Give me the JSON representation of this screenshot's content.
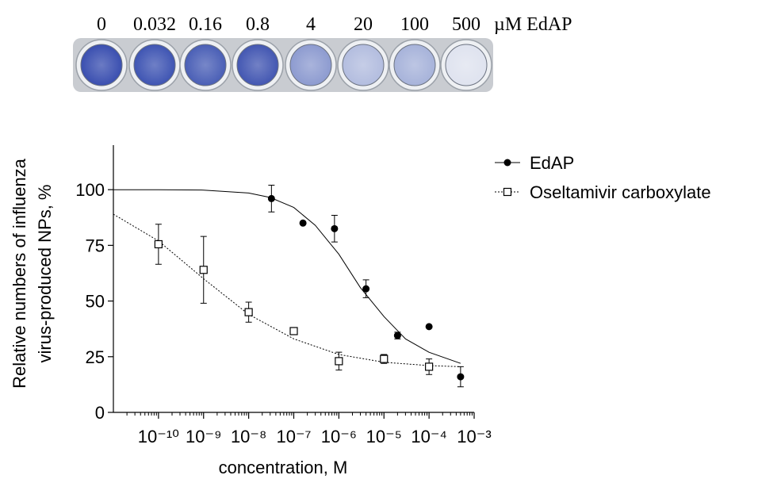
{
  "plate": {
    "labels": [
      "0",
      "0.032",
      "0.16",
      "0.8",
      "4",
      "20",
      "100",
      "500"
    ],
    "unit": "µM EdAP"
  },
  "chart_data": {
    "type": "scatter",
    "x_label": "concentration, M",
    "y_label": [
      "Relative numbers of influenza",
      "virus-produced NPs, %"
    ],
    "xscale": "log",
    "xlim": [
      1e-11,
      0.001
    ],
    "xticks": [
      {
        "value": 1e-10,
        "label": "10⁻¹⁰"
      },
      {
        "value": 1e-09,
        "label": "10⁻⁹"
      },
      {
        "value": 1e-08,
        "label": "10⁻⁸"
      },
      {
        "value": 1e-07,
        "label": "10⁻⁷"
      },
      {
        "value": 1e-06,
        "label": "10⁻⁶"
      },
      {
        "value": 1e-05,
        "label": "10⁻⁵"
      },
      {
        "value": 0.0001,
        "label": "10⁻⁴"
      },
      {
        "value": 0.001,
        "label": "10⁻³"
      }
    ],
    "ylim": [
      0,
      120
    ],
    "yticks": [
      0,
      25,
      50,
      75,
      100
    ],
    "legend": "right",
    "series": [
      {
        "name": "EdAP",
        "color": "#000000",
        "marker": "filled-circle",
        "line_style": "solid",
        "x": [
          3.2e-08,
          1.6e-07,
          8e-07,
          4e-06,
          2e-05,
          0.0001,
          0.0005
        ],
        "values": [
          96,
          85,
          82.5,
          55.5,
          34.5,
          38.5,
          16
        ],
        "errors": [
          6,
          null,
          6,
          4,
          1.5,
          null,
          4.5
        ],
        "fit_x": [
          1e-11,
          1e-10,
          1e-09,
          1e-08,
          3e-08,
          1e-07,
          3e-07,
          1e-06,
          3e-06,
          1e-05,
          3e-05,
          0.0001,
          0.0005
        ],
        "fit_values": [
          100,
          100,
          99.8,
          98.5,
          96.5,
          92,
          84,
          71,
          56,
          43,
          33,
          27,
          22
        ]
      },
      {
        "name": "Oseltamivir carboxylate",
        "color": "#000000",
        "marker": "open-square",
        "line_style": "dotted",
        "x": [
          1e-10,
          1e-09,
          1e-08,
          1e-07,
          1e-06,
          1e-05,
          0.0001
        ],
        "values": [
          75.5,
          64,
          45,
          36.5,
          23,
          24,
          20.5
        ],
        "errors": [
          9,
          15,
          4.5,
          1,
          4,
          2,
          3.5
        ],
        "fit_x": [
          1e-11,
          1e-10,
          1e-09,
          1e-08,
          1e-07,
          1e-06,
          1e-05,
          0.0001,
          0.0005
        ],
        "fit_values": [
          89,
          77,
          60,
          44,
          33,
          26,
          22.5,
          21,
          20.5
        ]
      }
    ]
  }
}
